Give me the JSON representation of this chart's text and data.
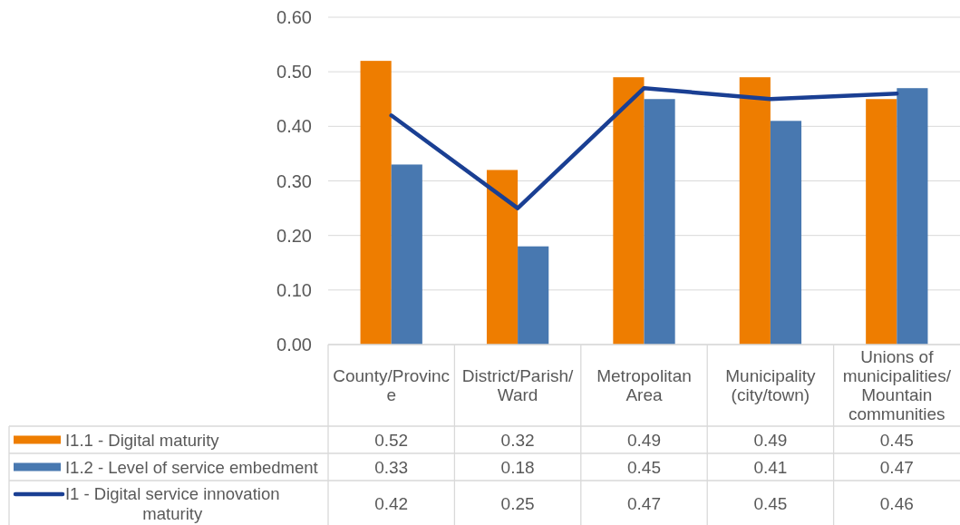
{
  "chart_data": {
    "type": "bar",
    "categories": [
      "County/Province",
      "District/Parish/ Ward",
      "Metropolitan Area",
      "Municipality (city/town)",
      "Unions of municipalities/ Mountain communities"
    ],
    "series": [
      {
        "name": "I1.1 - Digital maturity",
        "color": "#ee7d00",
        "values": [
          0.52,
          0.32,
          0.49,
          0.49,
          0.45
        ]
      },
      {
        "name": "I1.2 - Level of service embedment",
        "color": "#4878b0",
        "values": [
          0.33,
          0.18,
          0.45,
          0.41,
          0.47
        ]
      },
      {
        "name": "I1 - Digital service innovation maturity",
        "type": "line",
        "color": "#1a3f93",
        "values": [
          0.42,
          0.25,
          0.47,
          0.45,
          0.46
        ]
      }
    ],
    "ylim": [
      0,
      0.6
    ],
    "yticks": [
      {
        "value": 0,
        "label": "0.00"
      },
      {
        "value": 0.1,
        "label": "0.10"
      },
      {
        "value": 0.2,
        "label": "0.20"
      },
      {
        "value": 0.3,
        "label": "0.30"
      },
      {
        "value": 0.4,
        "label": "0.40"
      },
      {
        "value": 0.5,
        "label": "0.50"
      },
      {
        "value": 0.6,
        "label": "0.60"
      }
    ],
    "grid": "y",
    "legend": "bottom left",
    "data_labels": true
  }
}
